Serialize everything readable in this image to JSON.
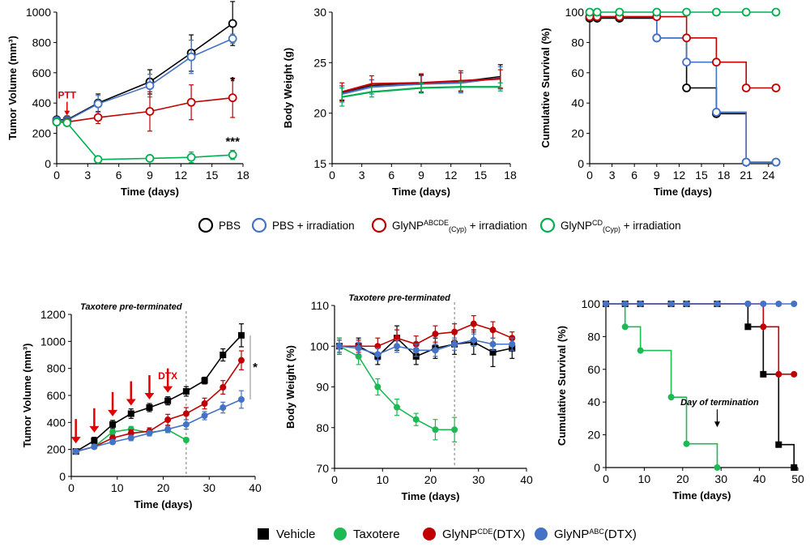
{
  "figure": {
    "legend_top": [
      {
        "label_main": "PBS",
        "label_sup": "",
        "label_sub": "",
        "label_tail": "",
        "color": "#000000",
        "marker": "open-circle"
      },
      {
        "label_main": "PBS + irradiation",
        "label_sup": "",
        "label_sub": "",
        "label_tail": "",
        "color": "#4472c4",
        "marker": "open-circle"
      },
      {
        "label_main": "GlyNP",
        "label_sup": "ABCDE",
        "label_sub": "(Cyp)",
        "label_tail": " + irradiation",
        "color": "#c00000",
        "marker": "open-circle"
      },
      {
        "label_main": "GlyNP",
        "label_sup": "CD",
        "label_sub": "(Cyp)",
        "label_tail": " + irradiation",
        "color": "#00b050",
        "marker": "open-circle"
      }
    ],
    "legend_bottom": [
      {
        "label_main": "Vehicle",
        "label_sup": "",
        "label_tail": "",
        "color": "#000000",
        "marker": "square"
      },
      {
        "label_main": "Taxotere",
        "label_sup": "",
        "label_tail": "",
        "color": "#1db954",
        "marker": "circle"
      },
      {
        "label_main": "GlyNP",
        "label_sup": "CDE",
        "label_tail": "(DTX)",
        "color": "#c00000",
        "marker": "circle"
      },
      {
        "label_main": "GlyNP",
        "label_sup": "ABC",
        "label_tail": "(DTX)",
        "color": "#4472c4",
        "marker": "circle"
      }
    ]
  },
  "chart_data": [
    {
      "id": "tumor-volume-ptt",
      "type": "line",
      "marker": "open-circle",
      "xlabel": "Time (days)",
      "ylabel": "Tumor Volume (mm³)",
      "xlim": [
        0,
        18
      ],
      "xticks": [
        0,
        3,
        6,
        9,
        12,
        15,
        18
      ],
      "ylim": [
        0,
        1000
      ],
      "yticks": [
        0,
        200,
        400,
        600,
        800,
        1000
      ],
      "annotations": [
        {
          "text": "PTT",
          "x": 1,
          "y": 430,
          "color": "#e00000",
          "kind": "arrow-down"
        },
        {
          "text": "*",
          "x": 17,
          "y": 520,
          "color": "#000000",
          "kind": "text"
        },
        {
          "text": "***",
          "x": 17,
          "y": 120,
          "color": "#000000",
          "kind": "text"
        }
      ],
      "series": [
        {
          "name": "PBS",
          "color": "#000000",
          "x": [
            0,
            1,
            4,
            9,
            13,
            17
          ],
          "y": [
            290,
            290,
            400,
            540,
            730,
            925
          ],
          "err": [
            20,
            25,
            60,
            80,
            120,
            145
          ]
        },
        {
          "name": "PBS + irradiation",
          "color": "#4472c4",
          "x": [
            0,
            1,
            4,
            9,
            13,
            17
          ],
          "y": [
            285,
            285,
            395,
            515,
            705,
            825
          ],
          "err": [
            20,
            25,
            55,
            75,
            110,
            30
          ]
        },
        {
          "name": "GlyNPABCDE(Cyp) + irradiation",
          "color": "#c00000",
          "x": [
            0,
            1,
            4,
            9,
            13,
            17
          ],
          "y": [
            275,
            275,
            305,
            345,
            405,
            435
          ],
          "err": [
            15,
            20,
            40,
            130,
            115,
            130
          ]
        },
        {
          "name": "GlyNPCD(Cyp) + irradiation",
          "color": "#00b050",
          "x": [
            0,
            1,
            4,
            9,
            13,
            17
          ],
          "y": [
            275,
            270,
            28,
            35,
            42,
            58
          ],
          "err": [
            15,
            15,
            10,
            12,
            35,
            30
          ]
        }
      ]
    },
    {
      "id": "body-weight-ptt",
      "type": "line",
      "marker": "none",
      "xlabel": "Time (days)",
      "ylabel": "Body Weight (g)",
      "xlim": [
        0,
        18
      ],
      "xticks": [
        0,
        3,
        6,
        9,
        12,
        15,
        18
      ],
      "ylim": [
        15,
        30
      ],
      "yticks": [
        15,
        20,
        25,
        30
      ],
      "annotations": [],
      "series": [
        {
          "name": "PBS",
          "color": "#000000",
          "x": [
            1,
            4,
            9,
            13,
            17
          ],
          "y": [
            22.0,
            22.7,
            22.9,
            23.1,
            23.6
          ],
          "err": [
            0.7,
            0.6,
            0.9,
            0.9,
            1.2
          ]
        },
        {
          "name": "PBS + irradiation",
          "color": "#4472c4",
          "x": [
            1,
            4,
            9,
            13,
            17
          ],
          "y": [
            21.9,
            22.6,
            22.9,
            23.0,
            23.5
          ],
          "err": [
            0.8,
            0.7,
            0.8,
            1.0,
            1.1
          ]
        },
        {
          "name": "GlyNPABCDE(Cyp) + irradiation",
          "color": "#c00000",
          "x": [
            1,
            4,
            9,
            13,
            17
          ],
          "y": [
            22.1,
            22.9,
            23.0,
            23.2,
            23.4
          ],
          "err": [
            0.9,
            0.8,
            0.9,
            1.0,
            0.9
          ]
        },
        {
          "name": "GlyNPCD(Cyp) + irradiation",
          "color": "#00b050",
          "x": [
            1,
            4,
            9,
            13,
            17
          ],
          "y": [
            21.6,
            22.1,
            22.5,
            22.6,
            22.6
          ],
          "err": [
            0.9,
            0.5,
            0.5,
            0.5,
            0.4
          ]
        }
      ]
    },
    {
      "id": "survival-ptt",
      "type": "step",
      "marker": "open-circle",
      "xlabel": "Time (days)",
      "ylabel": "Cumulative Survival (%)",
      "xlim": [
        0,
        25
      ],
      "xticks": [
        0,
        3,
        6,
        9,
        12,
        15,
        18,
        21,
        24
      ],
      "ylim": [
        0,
        100
      ],
      "yticks": [
        0,
        20,
        40,
        60,
        80,
        100
      ],
      "annotations": [],
      "series": [
        {
          "name": "PBS",
          "color": "#000000",
          "x": [
            0,
            1,
            4,
            9,
            13,
            17,
            21,
            25
          ],
          "y": [
            96,
            96,
            96,
            83,
            50,
            33,
            1,
            1
          ]
        },
        {
          "name": "PBS + irradiation",
          "color": "#4472c4",
          "x": [
            0,
            1,
            4,
            9,
            13,
            17,
            21,
            25
          ],
          "y": [
            97,
            97,
            97,
            83,
            67,
            34,
            1,
            1
          ]
        },
        {
          "name": "GlyNPABCDE(Cyp) + irradiation",
          "color": "#c00000",
          "x": [
            0,
            1,
            4,
            9,
            13,
            17,
            21,
            25
          ],
          "y": [
            97,
            97,
            97,
            97,
            83,
            67,
            50,
            50
          ]
        },
        {
          "name": "GlyNPCD(Cyp) + irradiation",
          "color": "#00b050",
          "x": [
            0,
            1,
            4,
            9,
            13,
            17,
            21,
            25
          ],
          "y": [
            100,
            100,
            100,
            100,
            100,
            100,
            100,
            100
          ]
        }
      ]
    },
    {
      "id": "tumor-volume-dtx",
      "type": "line",
      "marker": "filled",
      "xlabel": "Time (days)",
      "ylabel": "Tumor Volume (mm³)",
      "xlim": [
        0,
        40
      ],
      "xticks": [
        0,
        10,
        20,
        30,
        40
      ],
      "ylim": [
        0,
        1200
      ],
      "yticks": [
        0,
        200,
        400,
        600,
        800,
        1000,
        1200
      ],
      "vline": {
        "x": 25,
        "label": "Taxotere pre-terminated"
      },
      "annotations": [
        {
          "text": "DTX",
          "x": 21,
          "y": 720,
          "color": "#e00000",
          "kind": "text"
        },
        {
          "text": "*",
          "x": 40,
          "y": 780,
          "color": "#000000",
          "kind": "text"
        }
      ],
      "dose_arrows": [
        1,
        5,
        9,
        13,
        17,
        21
      ],
      "series": [
        {
          "name": "Vehicle",
          "color": "#000000",
          "marker": "square",
          "x": [
            1,
            5,
            9,
            13,
            17,
            21,
            25,
            29,
            33,
            37
          ],
          "y": [
            185,
            265,
            385,
            465,
            510,
            560,
            630,
            710,
            900,
            1045
          ],
          "err": [
            15,
            25,
            30,
            35,
            30,
            30,
            35,
            25,
            45,
            85
          ]
        },
        {
          "name": "Taxotere",
          "color": "#1db954",
          "marker": "circle",
          "x": [
            1,
            5,
            9,
            13,
            17,
            21,
            25
          ],
          "y": [
            185,
            220,
            330,
            350,
            325,
            345,
            270
          ],
          "err": [
            10,
            15,
            20,
            20,
            20,
            20,
            15
          ]
        },
        {
          "name": "GlyNPCDE(DTX)",
          "color": "#c00000",
          "marker": "circle",
          "x": [
            1,
            5,
            9,
            13,
            17,
            21,
            25,
            29,
            33,
            37
          ],
          "y": [
            185,
            220,
            285,
            320,
            335,
            420,
            465,
            540,
            660,
            860
          ],
          "err": [
            10,
            15,
            20,
            25,
            25,
            40,
            45,
            40,
            50,
            70
          ]
        },
        {
          "name": "GlyNPABC(DTX)",
          "color": "#4472c4",
          "marker": "circle",
          "x": [
            1,
            5,
            9,
            13,
            17,
            21,
            25,
            29,
            33,
            37
          ],
          "y": [
            185,
            220,
            255,
            285,
            320,
            350,
            385,
            450,
            510,
            570
          ],
          "err": [
            10,
            15,
            15,
            20,
            20,
            25,
            35,
            30,
            40,
            65
          ]
        }
      ]
    },
    {
      "id": "body-weight-dtx",
      "type": "line",
      "marker": "filled",
      "xlabel": "Time (days)",
      "ylabel": "Body Weight (%)",
      "xlim": [
        0,
        40
      ],
      "xticks": [
        0,
        10,
        20,
        30,
        40
      ],
      "ylim": [
        70,
        110
      ],
      "yticks": [
        70,
        80,
        90,
        100,
        110
      ],
      "vline": {
        "x": 25,
        "label": "Taxotere pre-terminated"
      },
      "annotations": [],
      "series": [
        {
          "name": "Vehicle",
          "color": "#000000",
          "marker": "square",
          "x": [
            1,
            5,
            9,
            13,
            17,
            21,
            25,
            29,
            33,
            37
          ],
          "y": [
            100,
            100,
            97.5,
            102,
            97.5,
            99.5,
            100.5,
            101,
            98.5,
            99.5
          ],
          "err": [
            2,
            2,
            2,
            3,
            2,
            2.5,
            2.5,
            3,
            3.5,
            2.5
          ]
        },
        {
          "name": "Taxotere",
          "color": "#1db954",
          "marker": "circle",
          "x": [
            1,
            5,
            9,
            13,
            17,
            21,
            25
          ],
          "y": [
            100,
            97.5,
            90,
            85,
            82,
            79.5,
            79.5
          ],
          "err": [
            2,
            2,
            2,
            2,
            1.5,
            2.5,
            3
          ]
        },
        {
          "name": "GlyNPCDE(DTX)",
          "color": "#c00000",
          "marker": "circle",
          "x": [
            1,
            5,
            9,
            13,
            17,
            21,
            25,
            29,
            33,
            37
          ],
          "y": [
            100,
            100,
            100,
            102,
            100.5,
            103,
            103.5,
            105.5,
            104,
            102
          ],
          "err": [
            1.5,
            1.5,
            2,
            2,
            2,
            2,
            2,
            2,
            2,
            1.5
          ]
        },
        {
          "name": "GlyNPABC(DTX)",
          "color": "#4472c4",
          "marker": "circle",
          "x": [
            1,
            5,
            9,
            13,
            17,
            21,
            25,
            29,
            33,
            37
          ],
          "y": [
            100,
            99.5,
            98,
            100,
            99,
            99,
            100.5,
            101.5,
            100.5,
            100.5
          ],
          "err": [
            1.5,
            1.5,
            1.5,
            1.5,
            1.5,
            1.5,
            1.5,
            1.5,
            1.5,
            1.5
          ]
        }
      ]
    },
    {
      "id": "survival-dtx",
      "type": "step",
      "marker": "filled",
      "xlabel": "Time (days)",
      "ylabel": "Cumulative Survival (%)",
      "xlim": [
        0,
        50
      ],
      "xticks": [
        0,
        10,
        20,
        30,
        40,
        50
      ],
      "ylim": [
        0,
        100
      ],
      "yticks": [
        0,
        20,
        40,
        60,
        80,
        100
      ],
      "annotations": [
        {
          "text": "Day of termination",
          "x": 29,
          "y": 38,
          "color": "#000000",
          "kind": "arrow-down-label"
        }
      ],
      "series": [
        {
          "name": "Vehicle",
          "color": "#000000",
          "marker": "square",
          "x": [
            0,
            5,
            9,
            17,
            21,
            29,
            37,
            41,
            45,
            49
          ],
          "y": [
            100,
            100,
            100,
            100,
            100,
            100,
            86,
            57,
            14,
            0
          ]
        },
        {
          "name": "Taxotere",
          "color": "#1db954",
          "marker": "circle",
          "x": [
            0,
            5,
            9,
            17,
            21,
            29
          ],
          "y": [
            100,
            86,
            71.5,
            43,
            14.5,
            0
          ]
        },
        {
          "name": "GlyNPCDE(DTX)",
          "color": "#c00000",
          "marker": "circle",
          "x": [
            0,
            5,
            9,
            17,
            21,
            29,
            37,
            41,
            45,
            49
          ],
          "y": [
            100,
            100,
            100,
            100,
            100,
            100,
            100,
            86,
            57,
            57
          ]
        },
        {
          "name": "GlyNPABC(DTX)",
          "color": "#4472c4",
          "marker": "circle",
          "x": [
            0,
            5,
            9,
            17,
            21,
            29,
            37,
            41,
            45,
            49
          ],
          "y": [
            100,
            100,
            100,
            100,
            100,
            100,
            100,
            100,
            100,
            100
          ]
        }
      ]
    }
  ]
}
